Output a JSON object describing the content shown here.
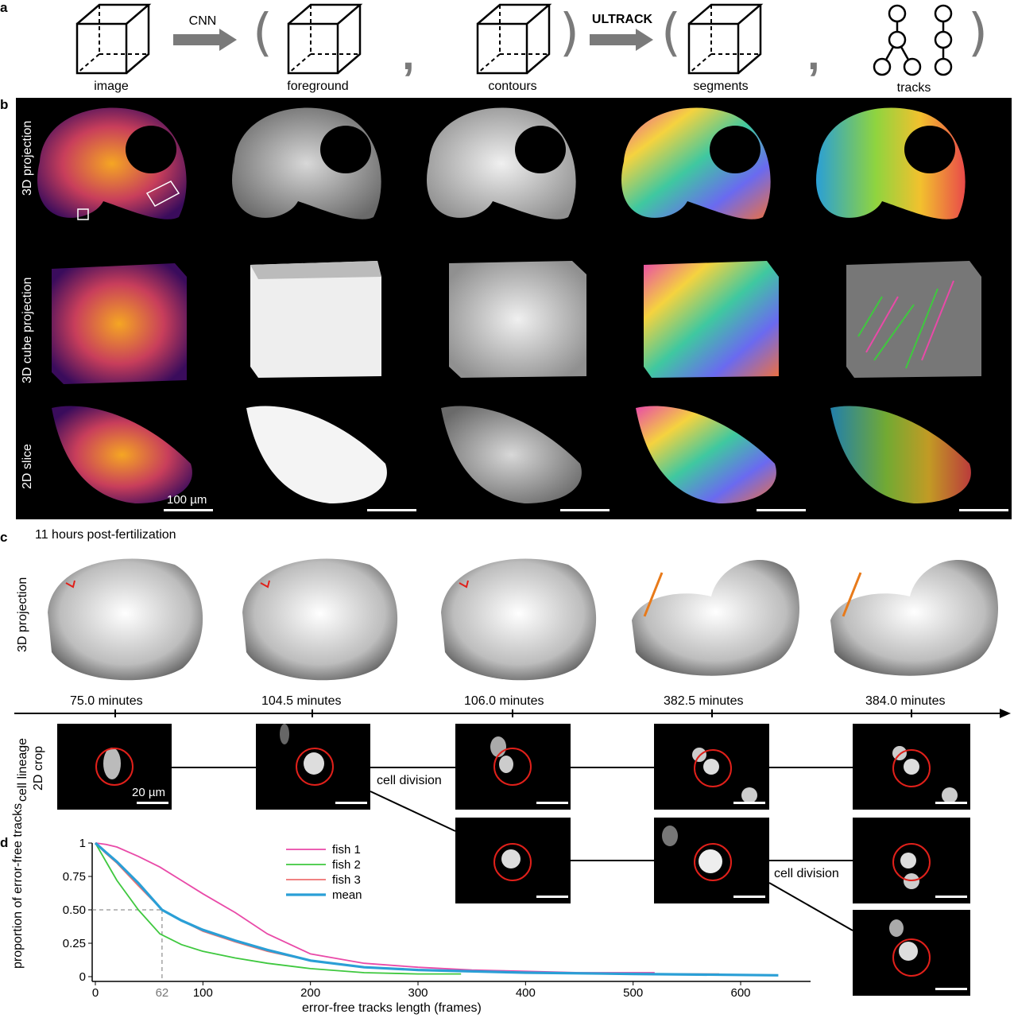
{
  "panels": {
    "a": "a",
    "b": "b",
    "c": "c",
    "d": "d"
  },
  "pipeline": {
    "image": "image",
    "cnn": "CNN",
    "foreground": "foreground",
    "contours": "contours",
    "ultrack": "ULTRACK",
    "segments": "segments",
    "tracks": "tracks"
  },
  "panel_b": {
    "rows": [
      "3D projection",
      "3D cube projection",
      "2D slice"
    ],
    "scale_bar": "100 µm"
  },
  "panel_c": {
    "title": "11 hours post-fertilization",
    "row_label": "3D projection",
    "times": [
      "75.0 minutes",
      "104.5 minutes",
      "106.0 minutes",
      "382.5 minutes",
      "384.0 minutes"
    ],
    "lineage_label_1": "cell lineage",
    "lineage_label_2": "2D crop",
    "scale_bar": "20 µm",
    "division_1": "cell division",
    "division_2": "cell division"
  },
  "colors": {
    "fish1": "#e94aa8",
    "fish2": "#3fc83f",
    "fish3": "#ee7070",
    "mean": "#2a9fd6",
    "ring": "#e0201a"
  },
  "chart_data": {
    "type": "line",
    "xlabel": "error-free tracks length (frames)",
    "ylabel": "proportion of error-free tracks",
    "xlim": [
      0,
      665
    ],
    "ylim": [
      0,
      1
    ],
    "xticks": [
      0,
      100,
      200,
      300,
      400,
      500,
      600
    ],
    "yticks": [
      0,
      0.25,
      0.5,
      0.75,
      1
    ],
    "ytick_labels": [
      "0",
      "0.25",
      "0.50",
      "0.75",
      "1"
    ],
    "annotation": {
      "x": 62,
      "y": 0.5,
      "label": "62"
    },
    "legend_position": "top-center",
    "series": [
      {
        "name": "fish 1",
        "x": [
          0,
          10,
          20,
          40,
          60,
          80,
          100,
          130,
          160,
          200,
          250,
          300,
          350,
          400,
          450,
          520
        ],
        "y": [
          1,
          0.99,
          0.97,
          0.9,
          0.82,
          0.72,
          0.62,
          0.48,
          0.32,
          0.17,
          0.1,
          0.07,
          0.05,
          0.04,
          0.03,
          0.03
        ]
      },
      {
        "name": "fish 2",
        "x": [
          0,
          10,
          20,
          40,
          60,
          80,
          100,
          130,
          160,
          200,
          250,
          300,
          340
        ],
        "y": [
          1,
          0.86,
          0.72,
          0.5,
          0.32,
          0.24,
          0.19,
          0.14,
          0.1,
          0.06,
          0.03,
          0.02,
          0.02
        ]
      },
      {
        "name": "fish 3",
        "x": [
          0,
          10,
          20,
          40,
          62,
          80,
          100,
          130,
          160,
          200,
          250,
          300,
          400,
          500,
          580
        ],
        "y": [
          1,
          0.92,
          0.85,
          0.68,
          0.5,
          0.42,
          0.34,
          0.26,
          0.19,
          0.12,
          0.07,
          0.05,
          0.03,
          0.02,
          0.02
        ]
      },
      {
        "name": "mean",
        "x": [
          0,
          10,
          20,
          40,
          62,
          80,
          100,
          130,
          160,
          200,
          250,
          300,
          400,
          500,
          635
        ],
        "y": [
          1,
          0.93,
          0.86,
          0.7,
          0.5,
          0.42,
          0.35,
          0.27,
          0.2,
          0.12,
          0.07,
          0.05,
          0.03,
          0.02,
          0.01
        ]
      }
    ]
  }
}
